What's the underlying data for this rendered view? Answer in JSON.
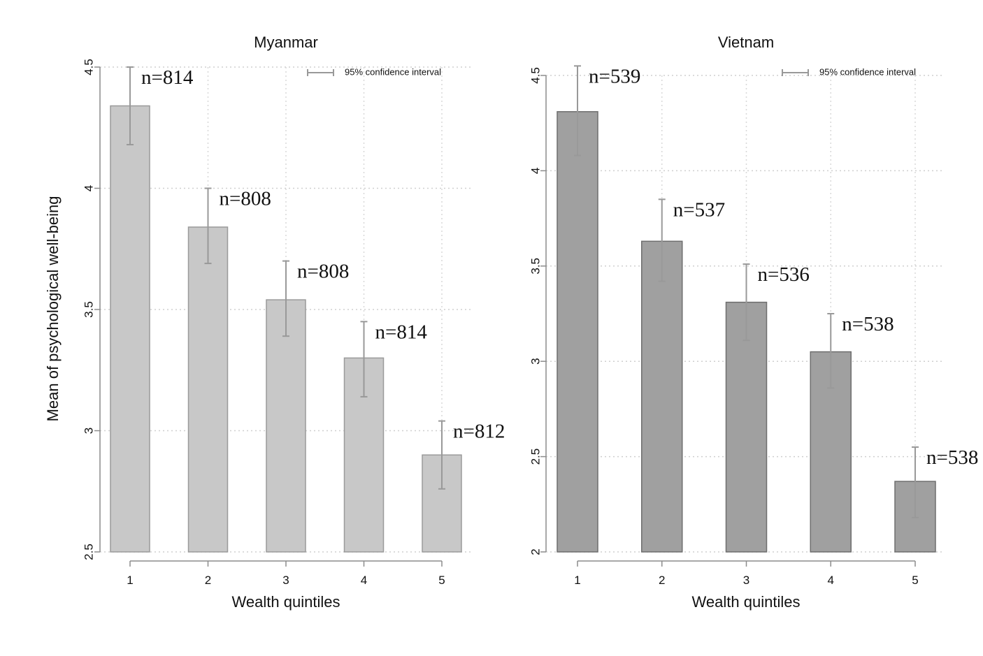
{
  "chart_data": [
    {
      "type": "bar",
      "title": "Myanmar",
      "xlabel": "Wealth quintiles",
      "ylabel": "Mean of psychological well-being",
      "categories": [
        "1",
        "2",
        "3",
        "4",
        "5"
      ],
      "values": [
        4.34,
        3.84,
        3.54,
        3.3,
        2.9
      ],
      "ci_low": [
        4.18,
        3.69,
        3.39,
        3.14,
        2.76
      ],
      "ci_high": [
        4.5,
        4.0,
        3.7,
        3.45,
        3.04
      ],
      "data_labels": [
        "n=814",
        "n=808",
        "n=808",
        "n=814",
        "n=812"
      ],
      "ylim": [
        2.5,
        4.5
      ],
      "yticks": [
        "2.5",
        "3",
        "3.5",
        "4",
        "4.5"
      ],
      "legend": "95% confidence interval",
      "legend_position": "top-right",
      "grid": true,
      "bar_color": "#c8c8c8",
      "bar_edge_color": "#9a9a9a",
      "ci_color": "#999999"
    },
    {
      "type": "bar",
      "title": "Vietnam",
      "xlabel": "Wealth quintiles",
      "ylabel": "",
      "categories": [
        "1",
        "2",
        "3",
        "4",
        "5"
      ],
      "values": [
        4.31,
        3.63,
        3.31,
        3.05,
        2.37
      ],
      "ci_low": [
        4.08,
        3.42,
        3.11,
        2.86,
        2.18
      ],
      "ci_high": [
        4.55,
        3.85,
        3.51,
        3.25,
        2.55
      ],
      "data_labels": [
        "n=539",
        "n=537",
        "n=536",
        "n=538",
        "n=538"
      ],
      "ylim": [
        2,
        4.5
      ],
      "yticks": [
        "2",
        "2.5",
        "3",
        "3.5",
        "4",
        "4.5"
      ],
      "legend": "95% confidence interval",
      "legend_position": "top-right",
      "grid": true,
      "bar_color": "#a0a0a0",
      "bar_edge_color": "#6e6e6e",
      "ci_color": "#999999"
    }
  ]
}
